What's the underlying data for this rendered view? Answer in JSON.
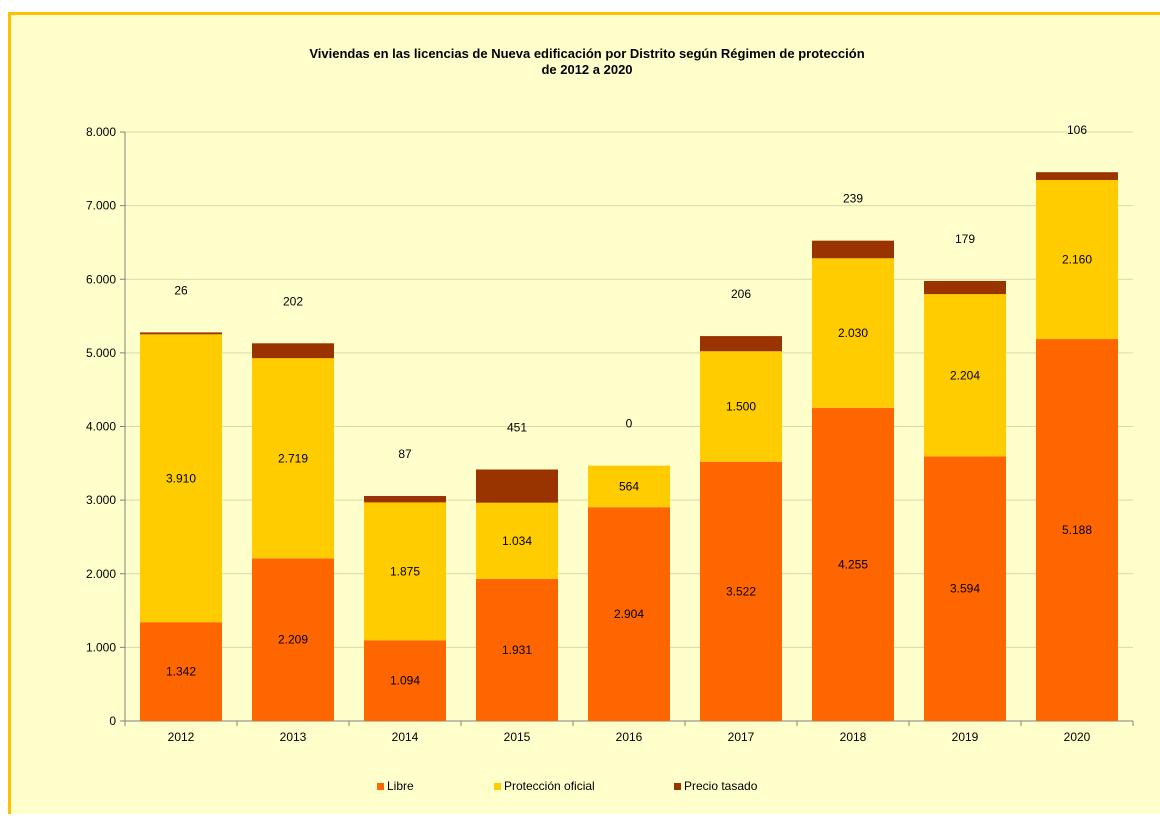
{
  "chart_data": {
    "type": "bar",
    "stacked": true,
    "title": "Viviendas en las licencias de Nueva edificación por Distrito según Régimen de protección",
    "subtitle": "de 2012 a 2020",
    "categories": [
      "2012",
      "2013",
      "2014",
      "2015",
      "2016",
      "2017",
      "2018",
      "2019",
      "2020"
    ],
    "series": [
      {
        "name": "Libre",
        "color": "#ff6600",
        "values": [
          1342,
          2209,
          1094,
          1931,
          2904,
          3522,
          4255,
          3594,
          5188
        ],
        "labels": [
          "1.342",
          "2.209",
          "1.094",
          "1.931",
          "2.904",
          "3.522",
          "4.255",
          "3.594",
          "5.188"
        ]
      },
      {
        "name": "Protección oficial",
        "color": "#ffcc00",
        "values": [
          3910,
          2719,
          1875,
          1034,
          564,
          1500,
          2030,
          2204,
          2160
        ],
        "labels": [
          "3.910",
          "2.719",
          "1.875",
          "1.034",
          "564",
          "1.500",
          "2.030",
          "2.204",
          "2.160"
        ]
      },
      {
        "name": "Precio tasado",
        "color": "#993300",
        "values": [
          26,
          202,
          87,
          451,
          0,
          206,
          239,
          179,
          106
        ],
        "labels": [
          "26",
          "202",
          "87",
          "451",
          "0",
          "206",
          "239",
          "179",
          "106"
        ]
      }
    ],
    "ylim": [
      0,
      8000
    ],
    "yticks": [
      0,
      1000,
      2000,
      3000,
      4000,
      5000,
      6000,
      7000,
      8000
    ],
    "ytick_labels": [
      "0",
      "1.000",
      "2.000",
      "3.000",
      "4.000",
      "5.000",
      "6.000",
      "7.000",
      "8.000"
    ],
    "grid": true,
    "legend_position": "bottom",
    "gridline_color": "#d9d9a6",
    "background_color": "#ffffcc",
    "frame_color": "#ffc000"
  }
}
